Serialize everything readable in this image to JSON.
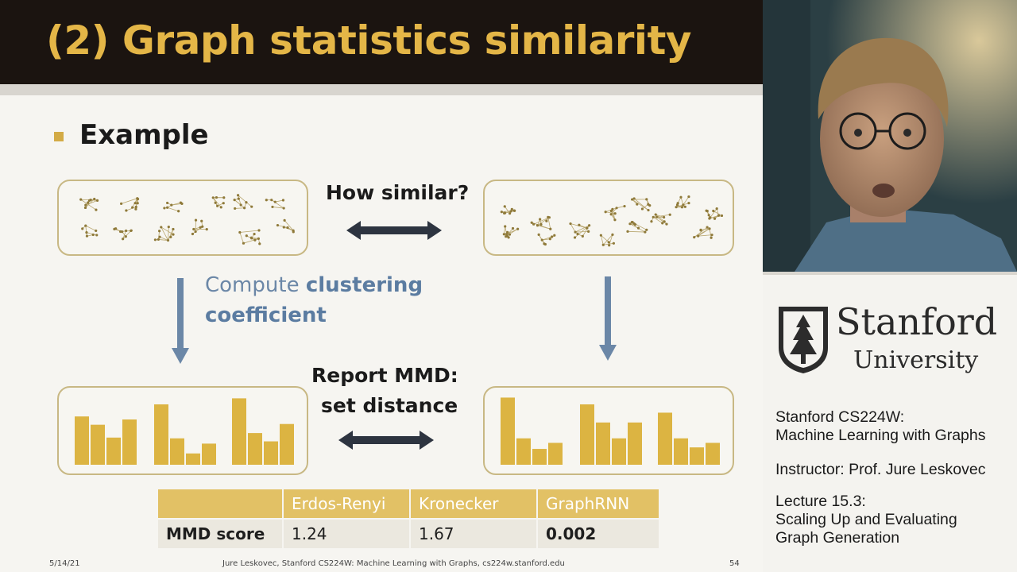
{
  "slide": {
    "title": "(2) Graph statistics similarity",
    "bullet": "Example",
    "how_similar": "How similar?",
    "compute_prefix": "Compute ",
    "compute_bold1": "clustering",
    "compute_bold2": "coefficient",
    "report_line1": "Report MMD:",
    "report_line2": "set distance",
    "table": {
      "headers": [
        "",
        "Erdos-Renyi",
        "Kronecker",
        "GraphRNN"
      ],
      "row_label": "MMD score",
      "values": [
        "1.24",
        "1.67",
        "0.002"
      ]
    },
    "footer": {
      "date": "5/14/21",
      "center": "Jure Leskovec, Stanford CS224W: Machine Learning with Graphs, cs224w.stanford.edu",
      "page": "54"
    },
    "colors": {
      "title_bar": "#1b1410",
      "title_text": "#e4b647",
      "accent_gold": "#d3ab46",
      "bar_color": "#dcb442",
      "arrow_blue": "#6b87a7",
      "arrow_dark": "#2d3440"
    },
    "left_bars": [
      0.64,
      0.53,
      0.36,
      0.6,
      0.8,
      0.35,
      0.15,
      0.28,
      0.88,
      0.42,
      0.31,
      0.54
    ],
    "right_bars": [
      0.89,
      0.35,
      0.21,
      0.29,
      0.8,
      0.56,
      0.35,
      0.56,
      0.69,
      0.35,
      0.23,
      0.29
    ]
  },
  "side": {
    "university_name": "Stanford",
    "university_sub": "University",
    "course_line1": "Stanford CS224W:",
    "course_line2": "Machine Learning with Graphs",
    "instructor": "Instructor: Prof. Jure Leskovec",
    "lecture_line1": "Lecture 15.3:",
    "lecture_line2": "Scaling Up and Evaluating",
    "lecture_line3": "Graph Generation"
  }
}
